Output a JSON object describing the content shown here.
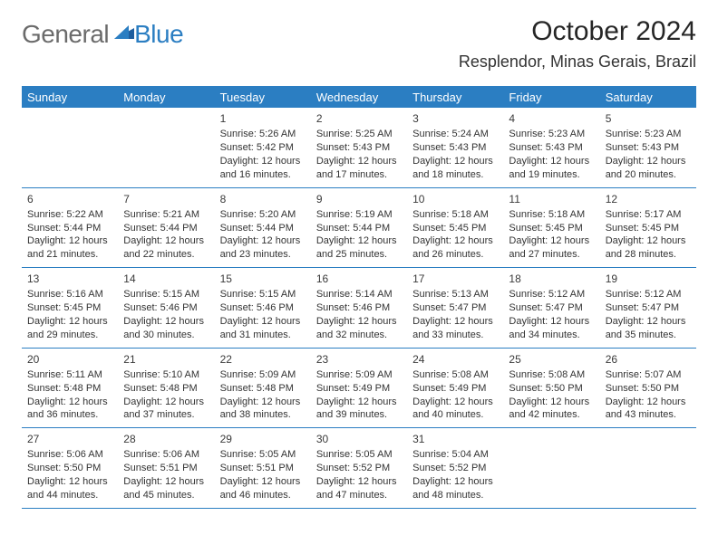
{
  "brand": {
    "word1": "General",
    "word2": "Blue",
    "word1_color": "#6b6b6b",
    "word2_color": "#2b7ec2",
    "mark_color": "#2b7ec2"
  },
  "title": "October 2024",
  "location": "Resplendor, Minas Gerais, Brazil",
  "colors": {
    "header_bg": "#2b7ec2",
    "header_text": "#ffffff",
    "rule": "#2b7ec2",
    "body_text": "#333333",
    "page_bg": "#ffffff"
  },
  "fonts": {
    "title_size": 30,
    "location_size": 18,
    "header_size": 13,
    "cell_size": 11
  },
  "day_headers": [
    "Sunday",
    "Monday",
    "Tuesday",
    "Wednesday",
    "Thursday",
    "Friday",
    "Saturday"
  ],
  "weeks": [
    [
      {
        "n": "",
        "sunrise": "",
        "sunset": "",
        "daylight": ""
      },
      {
        "n": "",
        "sunrise": "",
        "sunset": "",
        "daylight": ""
      },
      {
        "n": "1",
        "sunrise": "Sunrise: 5:26 AM",
        "sunset": "Sunset: 5:42 PM",
        "daylight": "Daylight: 12 hours and 16 minutes."
      },
      {
        "n": "2",
        "sunrise": "Sunrise: 5:25 AM",
        "sunset": "Sunset: 5:43 PM",
        "daylight": "Daylight: 12 hours and 17 minutes."
      },
      {
        "n": "3",
        "sunrise": "Sunrise: 5:24 AM",
        "sunset": "Sunset: 5:43 PM",
        "daylight": "Daylight: 12 hours and 18 minutes."
      },
      {
        "n": "4",
        "sunrise": "Sunrise: 5:23 AM",
        "sunset": "Sunset: 5:43 PM",
        "daylight": "Daylight: 12 hours and 19 minutes."
      },
      {
        "n": "5",
        "sunrise": "Sunrise: 5:23 AM",
        "sunset": "Sunset: 5:43 PM",
        "daylight": "Daylight: 12 hours and 20 minutes."
      }
    ],
    [
      {
        "n": "6",
        "sunrise": "Sunrise: 5:22 AM",
        "sunset": "Sunset: 5:44 PM",
        "daylight": "Daylight: 12 hours and 21 minutes."
      },
      {
        "n": "7",
        "sunrise": "Sunrise: 5:21 AM",
        "sunset": "Sunset: 5:44 PM",
        "daylight": "Daylight: 12 hours and 22 minutes."
      },
      {
        "n": "8",
        "sunrise": "Sunrise: 5:20 AM",
        "sunset": "Sunset: 5:44 PM",
        "daylight": "Daylight: 12 hours and 23 minutes."
      },
      {
        "n": "9",
        "sunrise": "Sunrise: 5:19 AM",
        "sunset": "Sunset: 5:44 PM",
        "daylight": "Daylight: 12 hours and 25 minutes."
      },
      {
        "n": "10",
        "sunrise": "Sunrise: 5:18 AM",
        "sunset": "Sunset: 5:45 PM",
        "daylight": "Daylight: 12 hours and 26 minutes."
      },
      {
        "n": "11",
        "sunrise": "Sunrise: 5:18 AM",
        "sunset": "Sunset: 5:45 PM",
        "daylight": "Daylight: 12 hours and 27 minutes."
      },
      {
        "n": "12",
        "sunrise": "Sunrise: 5:17 AM",
        "sunset": "Sunset: 5:45 PM",
        "daylight": "Daylight: 12 hours and 28 minutes."
      }
    ],
    [
      {
        "n": "13",
        "sunrise": "Sunrise: 5:16 AM",
        "sunset": "Sunset: 5:45 PM",
        "daylight": "Daylight: 12 hours and 29 minutes."
      },
      {
        "n": "14",
        "sunrise": "Sunrise: 5:15 AM",
        "sunset": "Sunset: 5:46 PM",
        "daylight": "Daylight: 12 hours and 30 minutes."
      },
      {
        "n": "15",
        "sunrise": "Sunrise: 5:15 AM",
        "sunset": "Sunset: 5:46 PM",
        "daylight": "Daylight: 12 hours and 31 minutes."
      },
      {
        "n": "16",
        "sunrise": "Sunrise: 5:14 AM",
        "sunset": "Sunset: 5:46 PM",
        "daylight": "Daylight: 12 hours and 32 minutes."
      },
      {
        "n": "17",
        "sunrise": "Sunrise: 5:13 AM",
        "sunset": "Sunset: 5:47 PM",
        "daylight": "Daylight: 12 hours and 33 minutes."
      },
      {
        "n": "18",
        "sunrise": "Sunrise: 5:12 AM",
        "sunset": "Sunset: 5:47 PM",
        "daylight": "Daylight: 12 hours and 34 minutes."
      },
      {
        "n": "19",
        "sunrise": "Sunrise: 5:12 AM",
        "sunset": "Sunset: 5:47 PM",
        "daylight": "Daylight: 12 hours and 35 minutes."
      }
    ],
    [
      {
        "n": "20",
        "sunrise": "Sunrise: 5:11 AM",
        "sunset": "Sunset: 5:48 PM",
        "daylight": "Daylight: 12 hours and 36 minutes."
      },
      {
        "n": "21",
        "sunrise": "Sunrise: 5:10 AM",
        "sunset": "Sunset: 5:48 PM",
        "daylight": "Daylight: 12 hours and 37 minutes."
      },
      {
        "n": "22",
        "sunrise": "Sunrise: 5:09 AM",
        "sunset": "Sunset: 5:48 PM",
        "daylight": "Daylight: 12 hours and 38 minutes."
      },
      {
        "n": "23",
        "sunrise": "Sunrise: 5:09 AM",
        "sunset": "Sunset: 5:49 PM",
        "daylight": "Daylight: 12 hours and 39 minutes."
      },
      {
        "n": "24",
        "sunrise": "Sunrise: 5:08 AM",
        "sunset": "Sunset: 5:49 PM",
        "daylight": "Daylight: 12 hours and 40 minutes."
      },
      {
        "n": "25",
        "sunrise": "Sunrise: 5:08 AM",
        "sunset": "Sunset: 5:50 PM",
        "daylight": "Daylight: 12 hours and 42 minutes."
      },
      {
        "n": "26",
        "sunrise": "Sunrise: 5:07 AM",
        "sunset": "Sunset: 5:50 PM",
        "daylight": "Daylight: 12 hours and 43 minutes."
      }
    ],
    [
      {
        "n": "27",
        "sunrise": "Sunrise: 5:06 AM",
        "sunset": "Sunset: 5:50 PM",
        "daylight": "Daylight: 12 hours and 44 minutes."
      },
      {
        "n": "28",
        "sunrise": "Sunrise: 5:06 AM",
        "sunset": "Sunset: 5:51 PM",
        "daylight": "Daylight: 12 hours and 45 minutes."
      },
      {
        "n": "29",
        "sunrise": "Sunrise: 5:05 AM",
        "sunset": "Sunset: 5:51 PM",
        "daylight": "Daylight: 12 hours and 46 minutes."
      },
      {
        "n": "30",
        "sunrise": "Sunrise: 5:05 AM",
        "sunset": "Sunset: 5:52 PM",
        "daylight": "Daylight: 12 hours and 47 minutes."
      },
      {
        "n": "31",
        "sunrise": "Sunrise: 5:04 AM",
        "sunset": "Sunset: 5:52 PM",
        "daylight": "Daylight: 12 hours and 48 minutes."
      },
      {
        "n": "",
        "sunrise": "",
        "sunset": "",
        "daylight": ""
      },
      {
        "n": "",
        "sunrise": "",
        "sunset": "",
        "daylight": ""
      }
    ]
  ]
}
